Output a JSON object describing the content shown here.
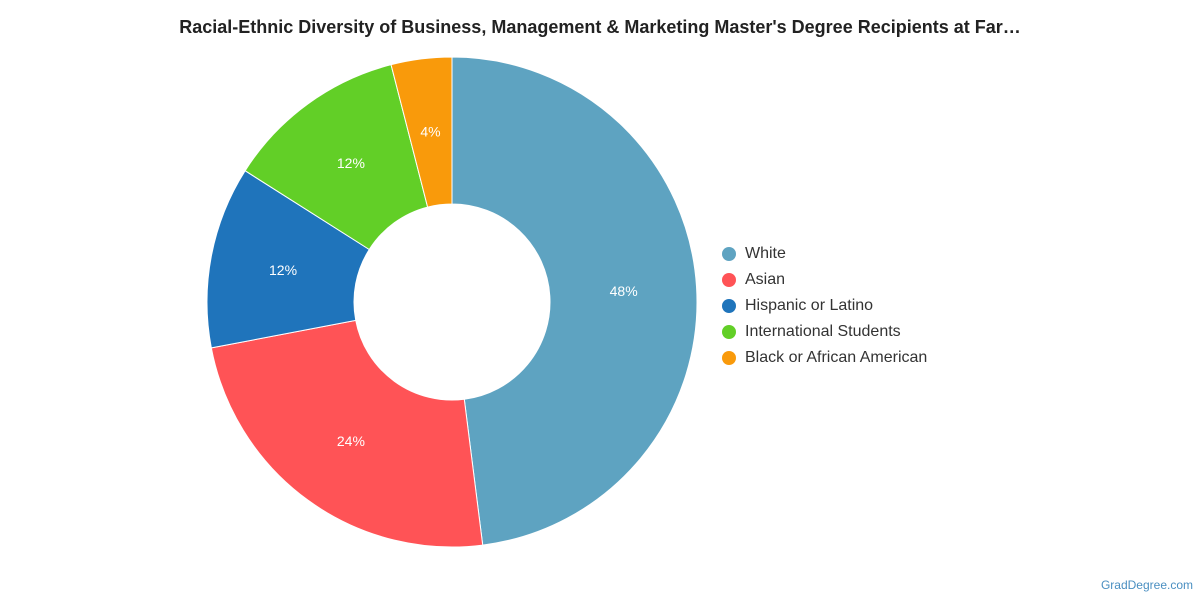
{
  "chart_data": {
    "type": "pie",
    "title": "Racial-Ethnic Diversity of Business, Management & Marketing Master's Degree Recipients at Far…",
    "donut": true,
    "legend_position": "right",
    "categories": [
      "White",
      "Asian",
      "Hispanic or Latino",
      "International Students",
      "Black or African American"
    ],
    "values": [
      48,
      24,
      12,
      12,
      4
    ],
    "slice_order": [
      "White",
      "Asian",
      "Hispanic or Latino",
      "International Students",
      "Black or African American"
    ],
    "value_labels": [
      "48%",
      "24%",
      "12%",
      "12%",
      "4%"
    ],
    "colors": [
      "#5ea3c1",
      "#ff5356",
      "#1f74bb",
      "#62cf27",
      "#f99a0b"
    ]
  },
  "watermark": "GradDegree.com"
}
